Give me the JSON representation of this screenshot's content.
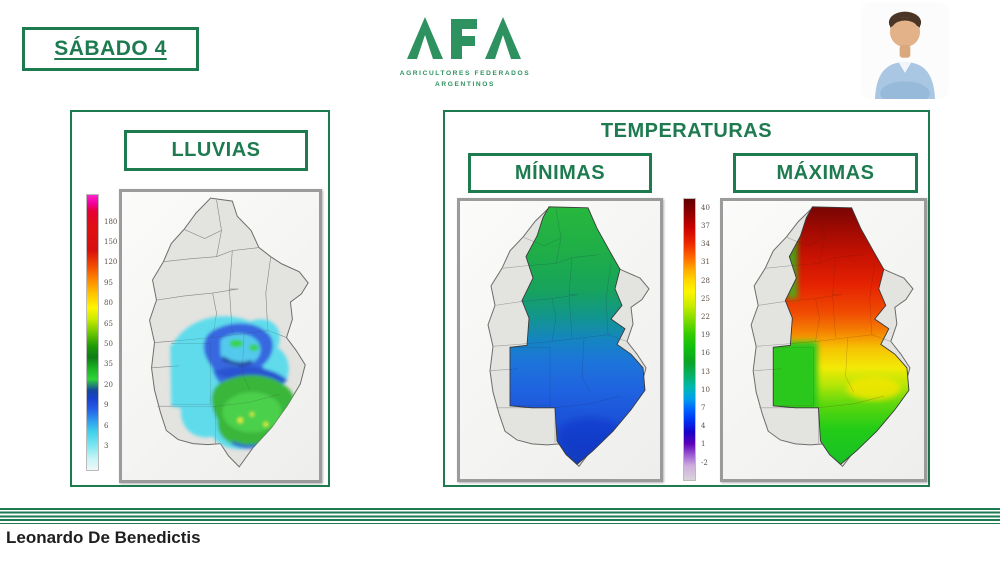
{
  "slide": {
    "day_label": "SÁBADO 4",
    "author": "Leonardo De Benedictis",
    "accent_green": "#1e7b4f"
  },
  "logo": {
    "acronym": "AFA",
    "subtitle_line1": "AGRICULTORES FEDERADOS",
    "subtitle_line2": "ARGENTINOS",
    "color": "#2e9160"
  },
  "rain_panel": {
    "title": "LLUVIAS",
    "scale": {
      "labels": [
        "180",
        "150",
        "120",
        "95",
        "80",
        "65",
        "50",
        "35",
        "20",
        "9",
        "6",
        "3"
      ],
      "label_start": 10,
      "label_end": 91,
      "stops": [
        {
          "c": "#ff22cc",
          "p": 0
        },
        {
          "c": "#f2009a",
          "p": 3
        },
        {
          "c": "#e60033",
          "p": 6
        },
        {
          "c": "#e01010",
          "p": 12
        },
        {
          "c": "#d80f0f",
          "p": 20
        },
        {
          "c": "#f44d00",
          "p": 26
        },
        {
          "c": "#ff8a00",
          "p": 31
        },
        {
          "c": "#ffc400",
          "p": 36
        },
        {
          "c": "#fff600",
          "p": 41
        },
        {
          "c": "#cdeb00",
          "p": 45
        },
        {
          "c": "#6fc800",
          "p": 50
        },
        {
          "c": "#1d9a06",
          "p": 55
        },
        {
          "c": "#0d7d14",
          "p": 59
        },
        {
          "c": "#19b424",
          "p": 63
        },
        {
          "c": "#2ed438",
          "p": 67
        },
        {
          "c": "#14489c",
          "p": 71
        },
        {
          "c": "#1b3fd0",
          "p": 74
        },
        {
          "c": "#2460e8",
          "p": 78
        },
        {
          "c": "#2e9bee",
          "p": 82
        },
        {
          "c": "#3fd0ec",
          "p": 86
        },
        {
          "c": "#7ce6f0",
          "p": 91
        },
        {
          "c": "#c8f4f6",
          "p": 96
        },
        {
          "c": "#eef8f8",
          "p": 100
        }
      ]
    }
  },
  "temperature_panel": {
    "title": "TEMPERATURAS",
    "minimas_label": "MÍNIMAS",
    "maximas_label": "MÁXIMAS",
    "scale": {
      "labels": [
        "40",
        "37",
        "34",
        "31",
        "28",
        "25",
        "22",
        "19",
        "16",
        "13",
        "10",
        "7",
        "4",
        "1",
        "-2"
      ],
      "label_start": 3.5,
      "label_end": 93.5,
      "stops": [
        {
          "c": "#5f0000",
          "p": 0
        },
        {
          "c": "#900000",
          "p": 5
        },
        {
          "c": "#c80000",
          "p": 10
        },
        {
          "c": "#ee2a00",
          "p": 16
        },
        {
          "c": "#ff6a00",
          "p": 21
        },
        {
          "c": "#ffa800",
          "p": 25
        },
        {
          "c": "#ffd800",
          "p": 29
        },
        {
          "c": "#fdf500",
          "p": 33
        },
        {
          "c": "#c9ec00",
          "p": 38
        },
        {
          "c": "#7fdc00",
          "p": 43
        },
        {
          "c": "#35cc00",
          "p": 48
        },
        {
          "c": "#0fbe10",
          "p": 53
        },
        {
          "c": "#0ca424",
          "p": 58
        },
        {
          "c": "#06b06a",
          "p": 63
        },
        {
          "c": "#00b8b0",
          "p": 67
        },
        {
          "c": "#00a0e8",
          "p": 71
        },
        {
          "c": "#0060ff",
          "p": 75
        },
        {
          "c": "#0030f0",
          "p": 79
        },
        {
          "c": "#1800c8",
          "p": 83
        },
        {
          "c": "#5a00b8",
          "p": 87
        },
        {
          "c": "#9a5ad0",
          "p": 91
        },
        {
          "c": "#cfaede",
          "p": 95
        },
        {
          "c": "#d8d4da",
          "p": 100
        }
      ]
    }
  }
}
